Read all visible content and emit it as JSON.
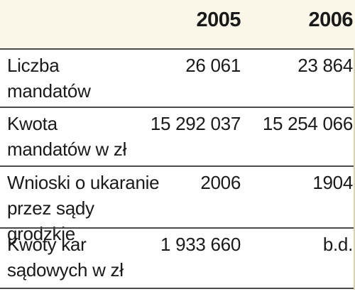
{
  "chart_data": {
    "type": "table",
    "columns": [
      "",
      "2005",
      "2006"
    ],
    "rows": [
      {
        "label": "Liczba mandatów",
        "label_lines": [
          "Liczba",
          "mandatów"
        ],
        "values": [
          "26 061",
          "23 864"
        ]
      },
      {
        "label": "Kwota mandatów w zł",
        "label_lines": [
          "Kwota",
          "mandatów w zł"
        ],
        "values": [
          "15 292 037",
          "15 254 066"
        ]
      },
      {
        "label": "Wnioski o ukaranie przez sądy grodzkie",
        "label_lines": [
          "Wnioski o ukaranie",
          "przez sądy grodzkie"
        ],
        "values": [
          "2006",
          "1904"
        ]
      },
      {
        "label": "Kwoty kar sądowych w zł",
        "label_lines": [
          "Kwoty kar",
          "sądowych w zł"
        ],
        "values": [
          "1 933 660",
          "b.d."
        ]
      }
    ],
    "header_bg": "#fbf8ea"
  }
}
